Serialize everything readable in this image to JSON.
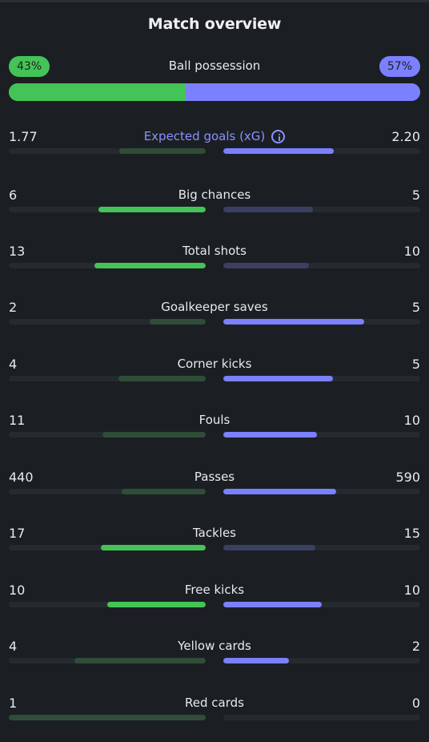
{
  "title": "Match overview",
  "possession": {
    "label": "Ball possession",
    "home": "43%",
    "away": "57%",
    "home_fraction": 0.43,
    "away_fraction": 0.57
  },
  "stats": [
    {
      "label": "Expected goals (xG)",
      "home": "1.77",
      "away": "2.20",
      "home_fraction": 0.44,
      "away_fraction": 0.56,
      "winner": "away",
      "info_icon": true
    },
    {
      "label": "Big chances",
      "home": "6",
      "away": "5",
      "home_fraction": 0.545,
      "away_fraction": 0.455,
      "winner": "home"
    },
    {
      "label": "Total shots",
      "home": "13",
      "away": "10",
      "home_fraction": 0.565,
      "away_fraction": 0.435,
      "winner": "home"
    },
    {
      "label": "Goalkeeper saves",
      "home": "2",
      "away": "5",
      "home_fraction": 0.286,
      "away_fraction": 0.714,
      "winner": "away"
    },
    {
      "label": "Corner kicks",
      "home": "4",
      "away": "5",
      "home_fraction": 0.444,
      "away_fraction": 0.556,
      "winner": "away"
    },
    {
      "label": "Fouls",
      "home": "11",
      "away": "10",
      "home_fraction": 0.524,
      "away_fraction": 0.476,
      "winner": "away"
    },
    {
      "label": "Passes",
      "home": "440",
      "away": "590",
      "home_fraction": 0.427,
      "away_fraction": 0.573,
      "winner": "away"
    },
    {
      "label": "Tackles",
      "home": "17",
      "away": "15",
      "home_fraction": 0.531,
      "away_fraction": 0.469,
      "winner": "home"
    },
    {
      "label": "Free kicks",
      "home": "10",
      "away": "10",
      "home_fraction": 0.5,
      "away_fraction": 0.5,
      "winner": "both"
    },
    {
      "label": "Yellow cards",
      "home": "4",
      "away": "2",
      "home_fraction": 0.667,
      "away_fraction": 0.333,
      "winner": "away"
    },
    {
      "label": "Red cards",
      "home": "1",
      "away": "0",
      "home_fraction": 1.0,
      "away_fraction": 0.0,
      "winner": "away"
    }
  ],
  "colors": {
    "background": "#1b1f23",
    "home": "#44c456",
    "away": "#7b80ff",
    "home_dim": "#2f4d38",
    "away_dim": "#3b4063",
    "track": "#252a2f"
  }
}
